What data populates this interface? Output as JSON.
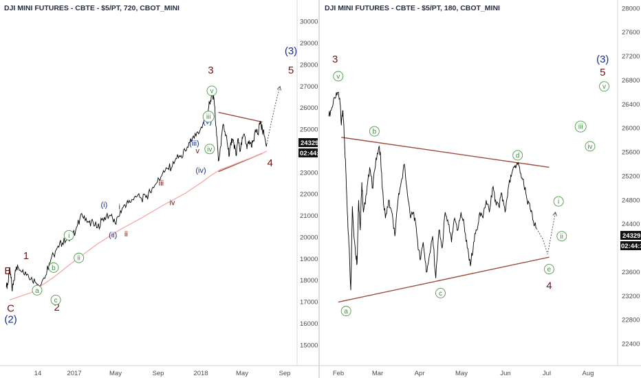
{
  "colors": {
    "price_line": "#000000",
    "trend_line": "#9c4a3c",
    "moving_average": "#f4a3a3",
    "projection": "#555555",
    "circle_label": "#3f8c3f",
    "blue_label": "#1a2b8a",
    "maroon_label": "#4a1010",
    "price_tag_bg": "#111111"
  },
  "chart_data": [
    {
      "type": "line",
      "title": "DJI MINI FUTURES - CBTE - $5/PT, 720, CBOT_MINI",
      "x_tick_labels": [
        "14",
        "2017",
        "May",
        "Sep",
        "2018",
        "May",
        "Sep"
      ],
      "y_tick_labels": [
        "15000",
        "16000",
        "17000",
        "18000",
        "19000",
        "20000",
        "21000",
        "22000",
        "23000",
        "24000",
        "25000",
        "26000",
        "27000",
        "28000",
        "29000",
        "30000"
      ],
      "ylim": [
        14500,
        30500
      ],
      "last_price": "24329",
      "countdown": "02:44:3",
      "series": [
        {
          "values": [
            [
              -0.15,
              17700
            ],
            [
              -0.07,
              17900
            ],
            [
              -0.02,
              18300
            ],
            [
              0.0,
              18600
            ],
            [
              0.05,
              18300
            ],
            [
              0.12,
              17500
            ],
            [
              0.2,
              18000
            ],
            [
              0.3,
              18650
            ],
            [
              0.4,
              18600
            ],
            [
              0.6,
              18500
            ],
            [
              0.8,
              18300
            ],
            [
              1.0,
              18150
            ],
            [
              1.2,
              17900
            ],
            [
              1.4,
              17750
            ],
            [
              1.6,
              18100
            ],
            [
              1.8,
              18800
            ],
            [
              2.0,
              19200
            ],
            [
              2.2,
              19600
            ],
            [
              2.4,
              19750
            ],
            [
              2.6,
              19900
            ],
            [
              2.8,
              20000
            ],
            [
              3.0,
              20300
            ],
            [
              3.2,
              20900
            ],
            [
              3.4,
              21000
            ],
            [
              3.6,
              20700
            ],
            [
              3.8,
              20700
            ],
            [
              4.0,
              20450
            ],
            [
              4.2,
              20800
            ],
            [
              4.4,
              21000
            ],
            [
              4.6,
              21000
            ],
            [
              4.8,
              20650
            ],
            [
              5.0,
              21000
            ],
            [
              5.2,
              21500
            ],
            [
              5.4,
              21600
            ],
            [
              5.6,
              21750
            ],
            [
              5.8,
              21900
            ],
            [
              6.0,
              21800
            ],
            [
              6.2,
              21850
            ],
            [
              6.4,
              22100
            ],
            [
              6.6,
              22400
            ],
            [
              6.8,
              22700
            ],
            [
              7.0,
              23100
            ],
            [
              7.2,
              23200
            ],
            [
              7.4,
              23300
            ],
            [
              7.6,
              23650
            ],
            [
              7.8,
              23800
            ],
            [
              8.0,
              24000
            ],
            [
              8.2,
              24400
            ],
            [
              8.4,
              24600
            ],
            [
              8.6,
              24800
            ],
            [
              8.8,
              25300
            ],
            [
              9.0,
              25800
            ],
            [
              9.1,
              26250
            ],
            [
              9.2,
              26550
            ],
            [
              9.3,
              26400
            ],
            [
              9.4,
              25100
            ],
            [
              9.5,
              23550
            ],
            [
              9.6,
              24200
            ],
            [
              9.7,
              25200
            ],
            [
              9.8,
              24900
            ],
            [
              9.9,
              24400
            ],
            [
              10.0,
              23800
            ],
            [
              10.1,
              24600
            ],
            [
              10.2,
              24400
            ],
            [
              10.3,
              23800
            ],
            [
              10.4,
              24600
            ],
            [
              10.5,
              24000
            ],
            [
              10.6,
              24600
            ],
            [
              10.7,
              24700
            ],
            [
              10.8,
              24100
            ],
            [
              10.9,
              24500
            ],
            [
              11.0,
              24200
            ],
            [
              11.1,
              24500
            ],
            [
              11.2,
              24900
            ],
            [
              11.3,
              24800
            ],
            [
              11.4,
              25400
            ],
            [
              11.5,
              25000
            ],
            [
              11.6,
              24700
            ],
            [
              11.7,
              24329
            ]
          ]
        },
        {
          "name": "moving_average",
          "values": [
            [
              0.0,
              17100
            ],
            [
              1.0,
              17450
            ],
            [
              2.0,
              18150
            ],
            [
              3.0,
              18950
            ],
            [
              4.0,
              19700
            ],
            [
              5.0,
              20350
            ],
            [
              6.0,
              20900
            ],
            [
              7.0,
              21500
            ],
            [
              8.0,
              22050
            ],
            [
              8.8,
              22600
            ],
            [
              9.2,
              22900
            ],
            [
              9.6,
              23150
            ],
            [
              10.0,
              23300
            ],
            [
              10.5,
              23500
            ],
            [
              11.0,
              23700
            ],
            [
              11.4,
              23850
            ],
            [
              11.7,
              24000
            ]
          ]
        }
      ],
      "trendlines": [
        {
          "from": [
            9.5,
            25800
          ],
          "to": [
            11.5,
            25350
          ]
        },
        {
          "from": [
            9.5,
            23050
          ],
          "to": [
            11.5,
            23900
          ]
        }
      ],
      "projection": [
        [
          11.7,
          24329
        ],
        [
          11.9,
          25300
        ],
        [
          12.1,
          26200
        ],
        [
          12.3,
          27000
        ]
      ],
      "wave_labels": [
        {
          "text": "B",
          "x": -0.08,
          "y": 18300,
          "style": "maroon"
        },
        {
          "text": "C",
          "x": 0.05,
          "y": 16550,
          "style": "maroon"
        },
        {
          "text": "(2)",
          "x": 0.05,
          "y": 16050,
          "style": "blue"
        },
        {
          "text": "1",
          "x": 0.75,
          "y": 19000,
          "style": "maroon"
        },
        {
          "text": "2",
          "x": 2.15,
          "y": 16600,
          "style": "maroon"
        },
        {
          "text": "(i)",
          "x": 4.3,
          "y": 21400,
          "style": "blue"
        },
        {
          "text": "(ii)",
          "x": 4.7,
          "y": 20000,
          "style": "blue"
        },
        {
          "text": "i",
          "x": 5.0,
          "y": 21300,
          "style": "maroon"
        },
        {
          "text": "ii",
          "x": 5.3,
          "y": 20050,
          "style": "maroon"
        },
        {
          "text": "iii",
          "x": 6.9,
          "y": 22400,
          "style": "maroon"
        },
        {
          "text": "iv",
          "x": 7.4,
          "y": 21500,
          "style": "maroon"
        },
        {
          "text": "v",
          "x": 8.55,
          "y": 23900,
          "style": "maroon"
        },
        {
          "text": "(iii)",
          "x": 8.4,
          "y": 24250,
          "style": "blue"
        },
        {
          "text": "(iv)",
          "x": 8.7,
          "y": 23000,
          "style": "blue"
        },
        {
          "text": "(v)",
          "x": 9.0,
          "y": 25250,
          "style": "blue"
        },
        {
          "text": "3",
          "x": 9.15,
          "y": 27600,
          "style": "maroon"
        },
        {
          "text": "4",
          "x": 11.85,
          "y": 23300,
          "style": "maroon"
        },
        {
          "text": "(3)",
          "x": 12.8,
          "y": 28500,
          "style": "blue"
        },
        {
          "text": "5",
          "x": 12.8,
          "y": 27600,
          "style": "maroon"
        }
      ],
      "circle_labels": [
        {
          "text": "a",
          "x": 1.25,
          "y": 17550
        },
        {
          "text": "b",
          "x": 2.0,
          "y": 18600
        },
        {
          "text": "c",
          "x": 2.1,
          "y": 17100
        },
        {
          "text": "i",
          "x": 2.7,
          "y": 20100
        },
        {
          "text": "ii",
          "x": 3.15,
          "y": 19050
        },
        {
          "text": "iii",
          "x": 9.05,
          "y": 25600
        },
        {
          "text": "iv",
          "x": 9.1,
          "y": 24100
        },
        {
          "text": "v",
          "x": 9.2,
          "y": 26800
        }
      ]
    },
    {
      "type": "line",
      "title": "DJI MINI FUTURES - CBTE - $5/PT, 180, CBOT_MINI",
      "x_tick_labels": [
        "Feb",
        "Mar",
        "Apr",
        "May",
        "Jun",
        "Jul",
        "Aug"
      ],
      "y_tick_labels": [
        "22400",
        "22800",
        "23200",
        "23600",
        "24000",
        "24400",
        "24800",
        "25200",
        "25600",
        "26000",
        "26400",
        "26800",
        "27200",
        "27600",
        "28000"
      ],
      "ylim": [
        22200,
        28050
      ],
      "last_price": "24329",
      "countdown": "02:44:3",
      "series": [
        {
          "values": [
            [
              0.0,
              26200
            ],
            [
              0.1,
              26350
            ],
            [
              0.2,
              26500
            ],
            [
              0.3,
              26600
            ],
            [
              0.35,
              26500
            ],
            [
              0.4,
              26050
            ],
            [
              0.45,
              26300
            ],
            [
              0.5,
              25800
            ],
            [
              0.55,
              25200
            ],
            [
              0.6,
              24500
            ],
            [
              0.65,
              24000
            ],
            [
              0.7,
              23300
            ],
            [
              0.75,
              24700
            ],
            [
              0.8,
              24200
            ],
            [
              0.85,
              23900
            ],
            [
              0.9,
              23750
            ],
            [
              0.95,
              24800
            ],
            [
              1.0,
              24300
            ],
            [
              1.05,
              25100
            ],
            [
              1.1,
              24600
            ],
            [
              1.2,
              24900
            ],
            [
              1.3,
              25350
            ],
            [
              1.4,
              25000
            ],
            [
              1.5,
              25500
            ],
            [
              1.6,
              25700
            ],
            [
              1.65,
              25500
            ],
            [
              1.7,
              25000
            ],
            [
              1.8,
              24500
            ],
            [
              1.9,
              24800
            ],
            [
              2.0,
              24600
            ],
            [
              2.1,
              24200
            ],
            [
              2.2,
              24800
            ],
            [
              2.3,
              25100
            ],
            [
              2.4,
              25400
            ],
            [
              2.5,
              24900
            ],
            [
              2.6,
              24500
            ],
            [
              2.7,
              24600
            ],
            [
              2.8,
              24200
            ],
            [
              2.9,
              23800
            ],
            [
              3.0,
              24100
            ],
            [
              3.1,
              23600
            ],
            [
              3.2,
              23900
            ],
            [
              3.3,
              24200
            ],
            [
              3.4,
              23500
            ],
            [
              3.5,
              24300
            ],
            [
              3.6,
              24000
            ],
            [
              3.7,
              24600
            ],
            [
              3.8,
              24400
            ],
            [
              3.9,
              24100
            ],
            [
              4.0,
              24500
            ],
            [
              4.1,
              24300
            ],
            [
              4.2,
              24600
            ],
            [
              4.3,
              24400
            ],
            [
              4.4,
              24000
            ],
            [
              4.5,
              23700
            ],
            [
              4.6,
              24100
            ],
            [
              4.7,
              24300
            ],
            [
              4.8,
              24600
            ],
            [
              4.9,
              24500
            ],
            [
              5.0,
              24800
            ],
            [
              5.1,
              24600
            ],
            [
              5.2,
              25000
            ],
            [
              5.3,
              24800
            ],
            [
              5.4,
              24700
            ],
            [
              5.5,
              24900
            ],
            [
              5.6,
              24600
            ],
            [
              5.7,
              25000
            ],
            [
              5.8,
              25200
            ],
            [
              5.9,
              25350
            ],
            [
              6.0,
              25400
            ],
            [
              6.1,
              25250
            ],
            [
              6.2,
              25050
            ],
            [
              6.3,
              24800
            ],
            [
              6.4,
              24650
            ],
            [
              6.5,
              24450
            ],
            [
              6.6,
              24329
            ]
          ]
        }
      ],
      "trendlines": [
        {
          "from": [
            0.4,
            25850
          ],
          "to": [
            7.0,
            25350
          ]
        },
        {
          "from": [
            0.3,
            23100
          ],
          "to": [
            7.0,
            23850
          ]
        }
      ],
      "projection": [
        [
          6.6,
          24329
        ],
        [
          6.8,
          24150
        ],
        [
          6.95,
          23900
        ],
        [
          7.2,
          24600
        ]
      ],
      "wave_labels": [
        {
          "text": "3",
          "x": 0.2,
          "y": 27100,
          "style": "maroon"
        },
        {
          "text": "4",
          "x": 7.0,
          "y": 23320,
          "style": "maroon"
        },
        {
          "text": "(3)",
          "x": 8.7,
          "y": 27100,
          "style": "blue"
        },
        {
          "text": "5",
          "x": 8.7,
          "y": 26880,
          "style": "maroon"
        }
      ],
      "circle_labels": [
        {
          "text": "v",
          "x": 0.3,
          "y": 26870
        },
        {
          "text": "b",
          "x": 1.45,
          "y": 25950
        },
        {
          "text": "a",
          "x": 0.55,
          "y": 22950
        },
        {
          "text": "c",
          "x": 3.55,
          "y": 23250
        },
        {
          "text": "d",
          "x": 6.0,
          "y": 25550
        },
        {
          "text": "e",
          "x": 7.0,
          "y": 23650
        },
        {
          "text": "i",
          "x": 7.3,
          "y": 24780
        },
        {
          "text": "ii",
          "x": 7.4,
          "y": 24200
        },
        {
          "text": "iii",
          "x": 8.0,
          "y": 26030
        },
        {
          "text": "iv",
          "x": 8.3,
          "y": 25700
        },
        {
          "text": "v",
          "x": 8.75,
          "y": 26700
        }
      ]
    }
  ]
}
